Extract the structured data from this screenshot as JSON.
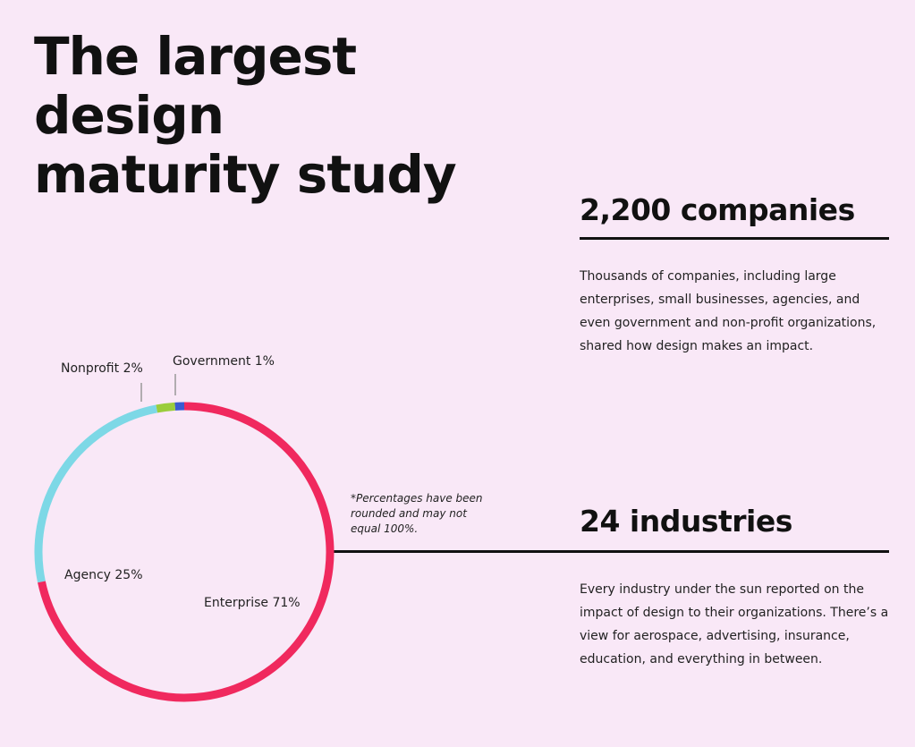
{
  "header": {
    "title": "The largest design maturity study"
  },
  "stats": [
    {
      "heading": "2,200 companies",
      "body": "Thousands of companies, including large enterprises, small businesses, agencies, and even government and non-profit organizations, shared how design makes an impact."
    },
    {
      "heading": "24 industries",
      "body": "Every industry under the sun reported on the impact of design to their organizations. There’s a view for aerospace, advertising, insurance, education, and everything in between."
    }
  ],
  "chart_data": {
    "type": "donut",
    "categories": [
      "Enterprise",
      "Agency",
      "Nonprofit",
      "Government"
    ],
    "values": [
      71,
      25,
      2,
      1
    ],
    "value_labels": [
      "71%",
      "25%",
      "2%",
      "1%"
    ],
    "colors": [
      "#f0295e",
      "#7dd8e6",
      "#9acd3c",
      "#3a5bd1"
    ],
    "note": "*Percentages have been rounded and may not equal 100%."
  }
}
